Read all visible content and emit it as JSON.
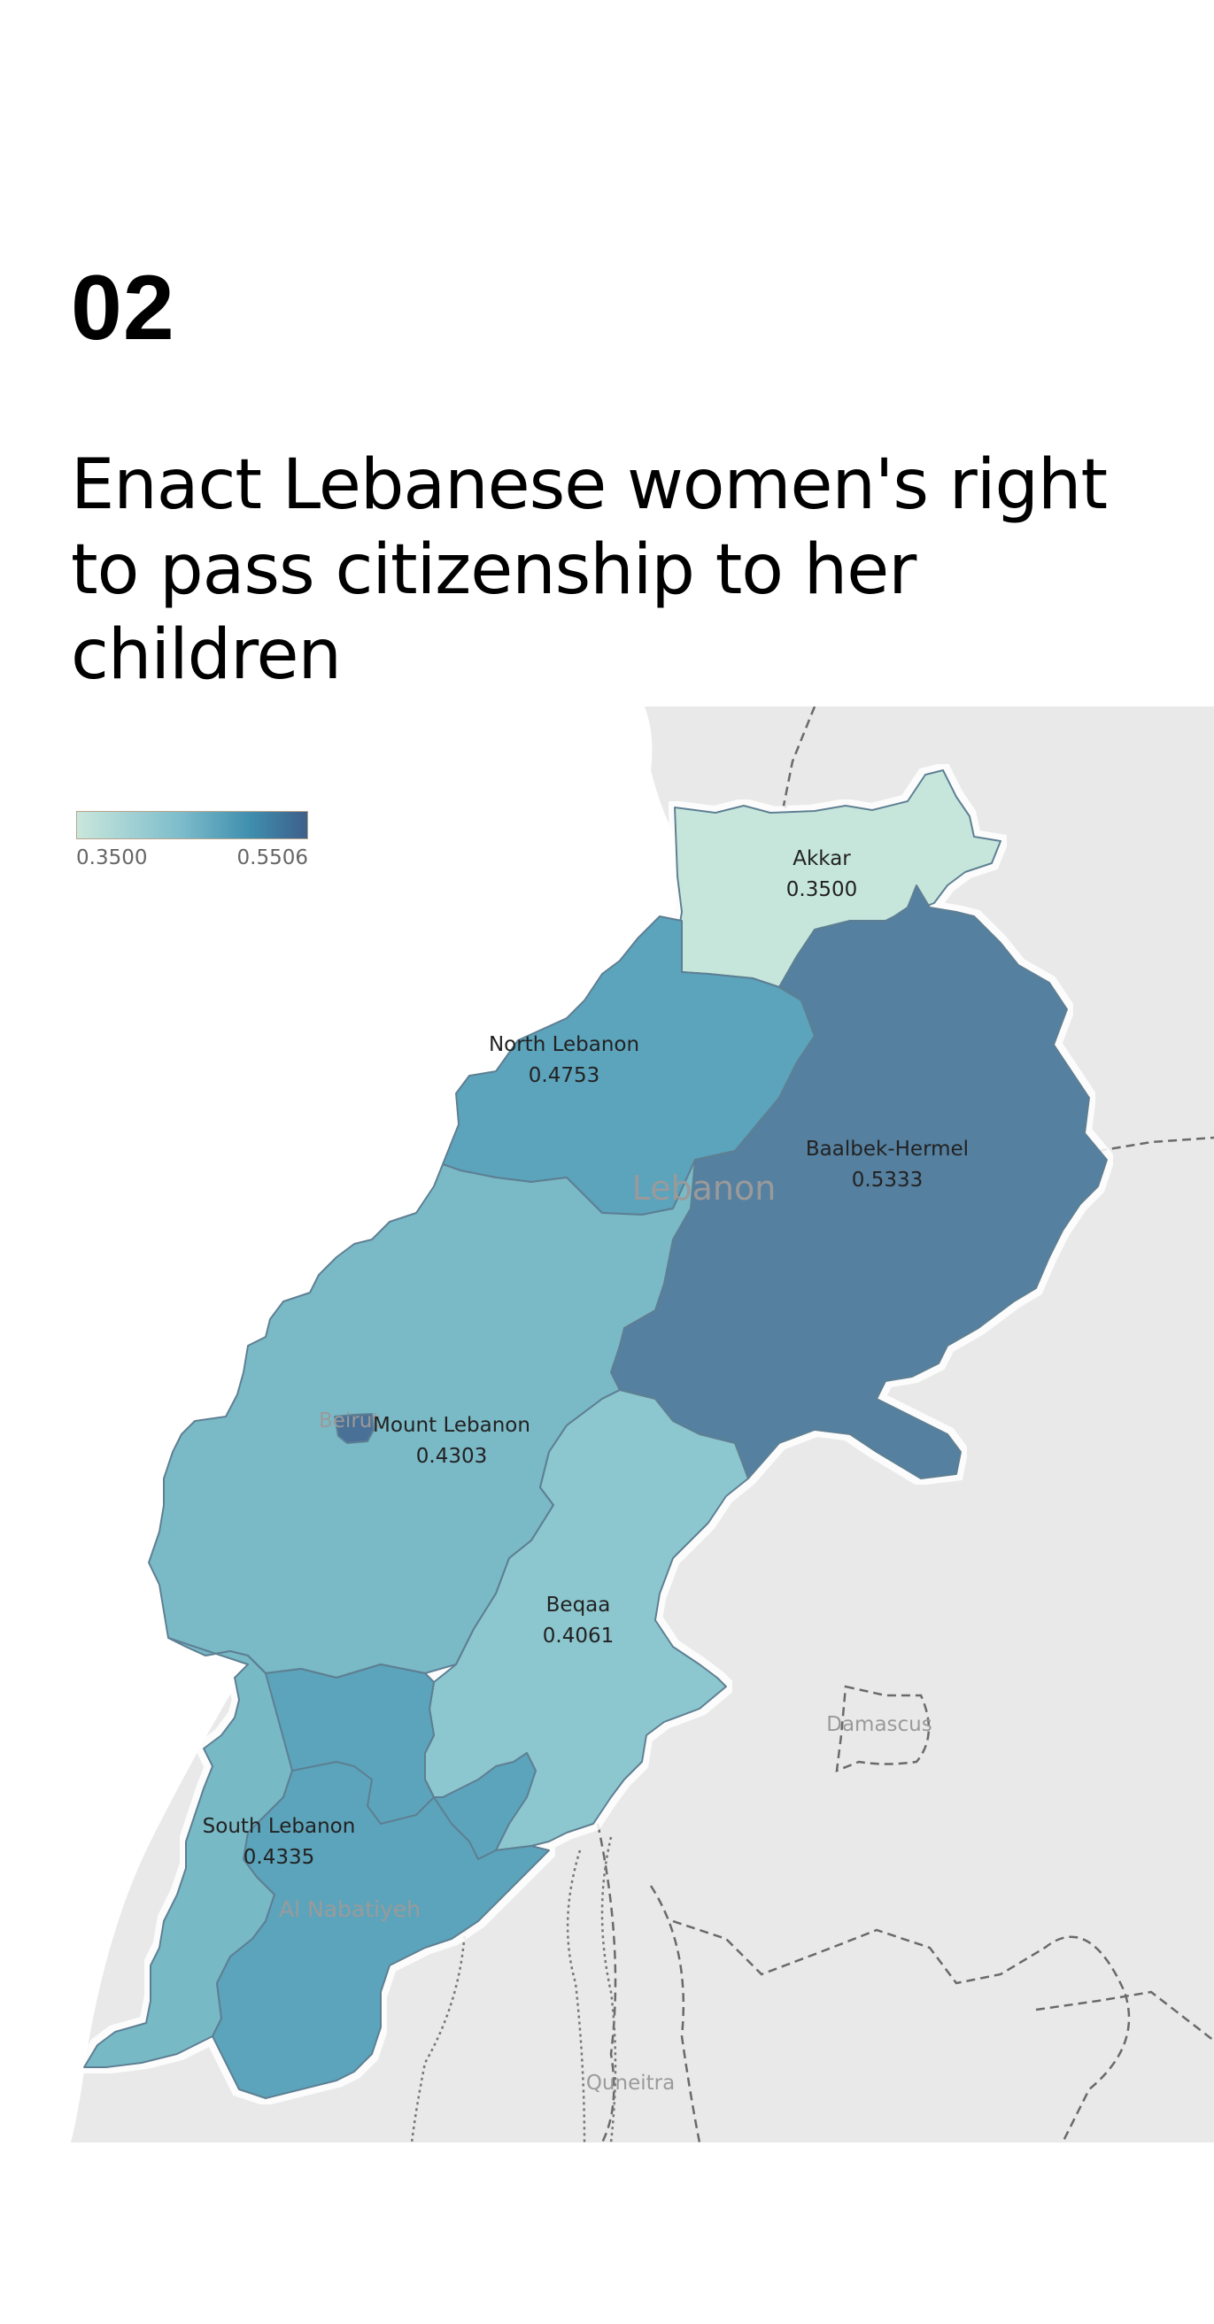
{
  "section": {
    "number": "02",
    "title": "Enact Lebanese women's right to pass citizenship to her children"
  },
  "legend": {
    "min_label": "0.3500",
    "max_label": "0.5506",
    "color_low": "#c9e7dc",
    "color_high": "#3e5f8a"
  },
  "regions": [
    {
      "name": "Akkar",
      "value": "0.3500",
      "color": "#c6e6dc"
    },
    {
      "name": "North Lebanon",
      "value": "0.4753",
      "color": "#5ba3bc"
    },
    {
      "name": "Baalbek-Hermel",
      "value": "0.5333",
      "color": "#5580a0"
    },
    {
      "name": "Mount Lebanon",
      "value": "0.4303",
      "color": "#7ab9c6"
    },
    {
      "name": "Beqaa",
      "value": "0.4061",
      "color": "#8cc6ce"
    },
    {
      "name": "South Lebanon",
      "value": "0.4335",
      "color": "#78b9c6"
    },
    {
      "name": "Al Nabatiyeh",
      "value": "",
      "color": "#5ba4bb"
    },
    {
      "name": "Beirut",
      "value": "",
      "color": "#4a6f96"
    }
  ],
  "basemap_labels": {
    "country": "Lebanon",
    "beirut": "Beirut",
    "nabatiyeh": "Al Nabatiyeh",
    "damascus": "Damascus",
    "quneitra": "Quneitra"
  }
}
